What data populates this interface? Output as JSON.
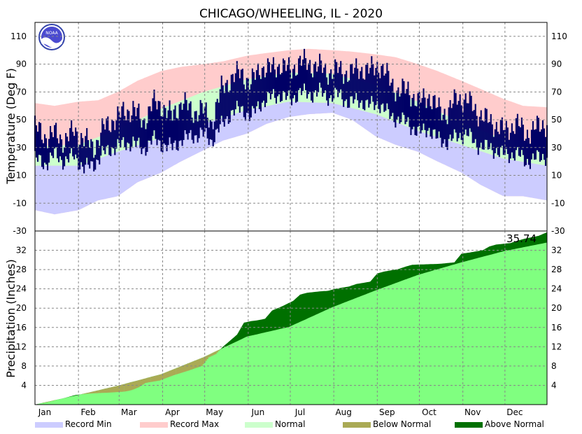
{
  "chart_data": [
    {
      "type": "area",
      "panel": "temperature",
      "title": "CHICAGO/WHEELING, IL - 2020",
      "ylabel": "Temperature (Deg F)",
      "ylim": [
        -30,
        120
      ],
      "yticks": [
        110,
        90,
        70,
        50,
        30,
        10,
        -10,
        -30
      ],
      "grid": true,
      "months": [
        "Jan",
        "Feb",
        "Mar",
        "Apr",
        "May",
        "Jun",
        "Jul",
        "Aug",
        "Sep",
        "Oct",
        "Nov",
        "Dec"
      ],
      "series": [
        {
          "name": "Record Max",
          "color": "#ffcccc",
          "x": [
            1,
            15,
            32,
            46,
            60,
            74,
            91,
            105,
            121,
            135,
            152,
            166,
            182,
            196,
            213,
            227,
            244,
            258,
            274,
            288,
            305,
            319,
            335,
            349,
            366
          ],
          "values": [
            62,
            60,
            63,
            64,
            70,
            78,
            85,
            88,
            90,
            92,
            96,
            98,
            100,
            101,
            100,
            99,
            97,
            95,
            90,
            85,
            78,
            72,
            65,
            60,
            59
          ]
        },
        {
          "name": "Normal High",
          "color": "#ccffcc",
          "x": [
            1,
            32,
            60,
            91,
            121,
            152,
            182,
            213,
            244,
            274,
            305,
            335,
            366
          ],
          "values": [
            31,
            32,
            43,
            58,
            70,
            79,
            84,
            83,
            75,
            63,
            48,
            36,
            31
          ]
        },
        {
          "name": "Normal Low",
          "color": "#ccffcc",
          "x": [
            1,
            32,
            60,
            91,
            121,
            152,
            182,
            213,
            244,
            274,
            305,
            335,
            366
          ],
          "values": [
            17,
            17,
            27,
            37,
            47,
            57,
            63,
            62,
            54,
            42,
            32,
            22,
            17
          ]
        },
        {
          "name": "Record Min",
          "color": "#ccccff",
          "x": [
            1,
            15,
            32,
            46,
            60,
            74,
            91,
            105,
            121,
            135,
            152,
            166,
            182,
            196,
            213,
            227,
            244,
            258,
            274,
            288,
            305,
            319,
            335,
            349,
            366
          ],
          "values": [
            -15,
            -18,
            -15,
            -8,
            -5,
            5,
            12,
            20,
            28,
            35,
            40,
            47,
            52,
            54,
            55,
            50,
            38,
            32,
            27,
            20,
            12,
            3,
            -5,
            -5,
            -8
          ]
        },
        {
          "name": "Observed High",
          "color": "#000066",
          "x": [
            1,
            8,
            15,
            22,
            29,
            36,
            43,
            50,
            57,
            64,
            71,
            78,
            85,
            92,
            99,
            106,
            113,
            120,
            127,
            134,
            141,
            148,
            155,
            162,
            169,
            176,
            183,
            190,
            197,
            204,
            211,
            218,
            225,
            232,
            239,
            246,
            253,
            260,
            267,
            274,
            281,
            288,
            295,
            302,
            309,
            316,
            323,
            330,
            337,
            344,
            351,
            358,
            366
          ],
          "values": [
            45,
            38,
            40,
            35,
            42,
            36,
            30,
            44,
            50,
            55,
            58,
            48,
            62,
            60,
            52,
            64,
            55,
            58,
            48,
            72,
            80,
            84,
            76,
            88,
            86,
            90,
            85,
            92,
            90,
            88,
            84,
            86,
            83,
            87,
            85,
            90,
            80,
            70,
            72,
            62,
            68,
            58,
            55,
            66,
            64,
            56,
            50,
            46,
            42,
            48,
            40,
            44,
            48
          ]
        },
        {
          "name": "Observed Low",
          "color": "#000066",
          "x": [
            1,
            8,
            15,
            22,
            29,
            36,
            43,
            50,
            57,
            64,
            71,
            78,
            85,
            92,
            99,
            106,
            113,
            120,
            127,
            134,
            141,
            148,
            155,
            162,
            169,
            176,
            183,
            190,
            197,
            204,
            211,
            218,
            225,
            232,
            239,
            246,
            253,
            260,
            267,
            274,
            281,
            288,
            295,
            302,
            309,
            316,
            323,
            330,
            337,
            344,
            351,
            358,
            366
          ],
          "values": [
            22,
            18,
            25,
            20,
            24,
            15,
            18,
            26,
            30,
            32,
            34,
            28,
            36,
            32,
            30,
            36,
            38,
            40,
            35,
            46,
            55,
            58,
            52,
            62,
            66,
            68,
            64,
            70,
            68,
            70,
            66,
            68,
            62,
            64,
            60,
            62,
            54,
            50,
            48,
            40,
            44,
            36,
            34,
            38,
            40,
            32,
            30,
            28,
            24,
            26,
            20,
            22,
            24
          ]
        }
      ]
    },
    {
      "type": "area",
      "panel": "precipitation",
      "ylabel": "Precipitation (Inches)",
      "ylim": [
        0,
        36
      ],
      "yticks": [
        32,
        28,
        24,
        20,
        16,
        12,
        8,
        4
      ],
      "grid": true,
      "annotation": "35.74",
      "months": [
        "Jan",
        "Feb",
        "Mar",
        "Apr",
        "May",
        "Jun",
        "Jul",
        "Aug",
        "Sep",
        "Oct",
        "Nov",
        "Dec"
      ],
      "series": [
        {
          "name": "Normal",
          "color": "#80ff80",
          "x": [
            1,
            32,
            60,
            91,
            121,
            152,
            182,
            213,
            244,
            274,
            305,
            335,
            366
          ],
          "values": [
            0,
            2.0,
            3.9,
            6.3,
            9.8,
            14.1,
            16.1,
            20.2,
            23.7,
            26.9,
            29.5,
            31.8,
            33.6
          ]
        },
        {
          "name": "Observed",
          "color": "#007000",
          "x": [
            1,
            10,
            20,
            30,
            40,
            55,
            65,
            70,
            75,
            80,
            90,
            100,
            110,
            120,
            125,
            130,
            135,
            145,
            150,
            155,
            160,
            165,
            170,
            178,
            185,
            190,
            195,
            205,
            210,
            215,
            225,
            230,
            240,
            245,
            250,
            260,
            265,
            270,
            280,
            290,
            300,
            305,
            310,
            320,
            325,
            330,
            340,
            345,
            350,
            360,
            366
          ],
          "values": [
            0,
            0.5,
            1.2,
            2.0,
            2.3,
            2.5,
            2.7,
            3.0,
            3.6,
            4.5,
            5.0,
            6.1,
            7.0,
            8.0,
            9.8,
            10.5,
            12.0,
            14.5,
            17.0,
            17.3,
            17.5,
            17.8,
            19.5,
            20.5,
            21.5,
            22.8,
            23.2,
            23.5,
            23.6,
            24.0,
            24.5,
            25.0,
            25.5,
            27.2,
            27.6,
            28.1,
            28.6,
            29.0,
            29.1,
            29.2,
            29.5,
            31.3,
            31.5,
            32.0,
            32.8,
            33.2,
            33.5,
            34.0,
            34.4,
            35.0,
            35.74
          ]
        }
      ]
    }
  ],
  "legend": [
    {
      "label": "Record Min",
      "color": "#ccccff"
    },
    {
      "label": "Record Max",
      "color": "#ffcccc"
    },
    {
      "label": "Normal",
      "color": "#ccffcc"
    },
    {
      "label": "Below Normal",
      "color": "#aaaa55"
    },
    {
      "label": "Above Normal",
      "color": "#007000"
    }
  ],
  "logo_text": "NOAA"
}
